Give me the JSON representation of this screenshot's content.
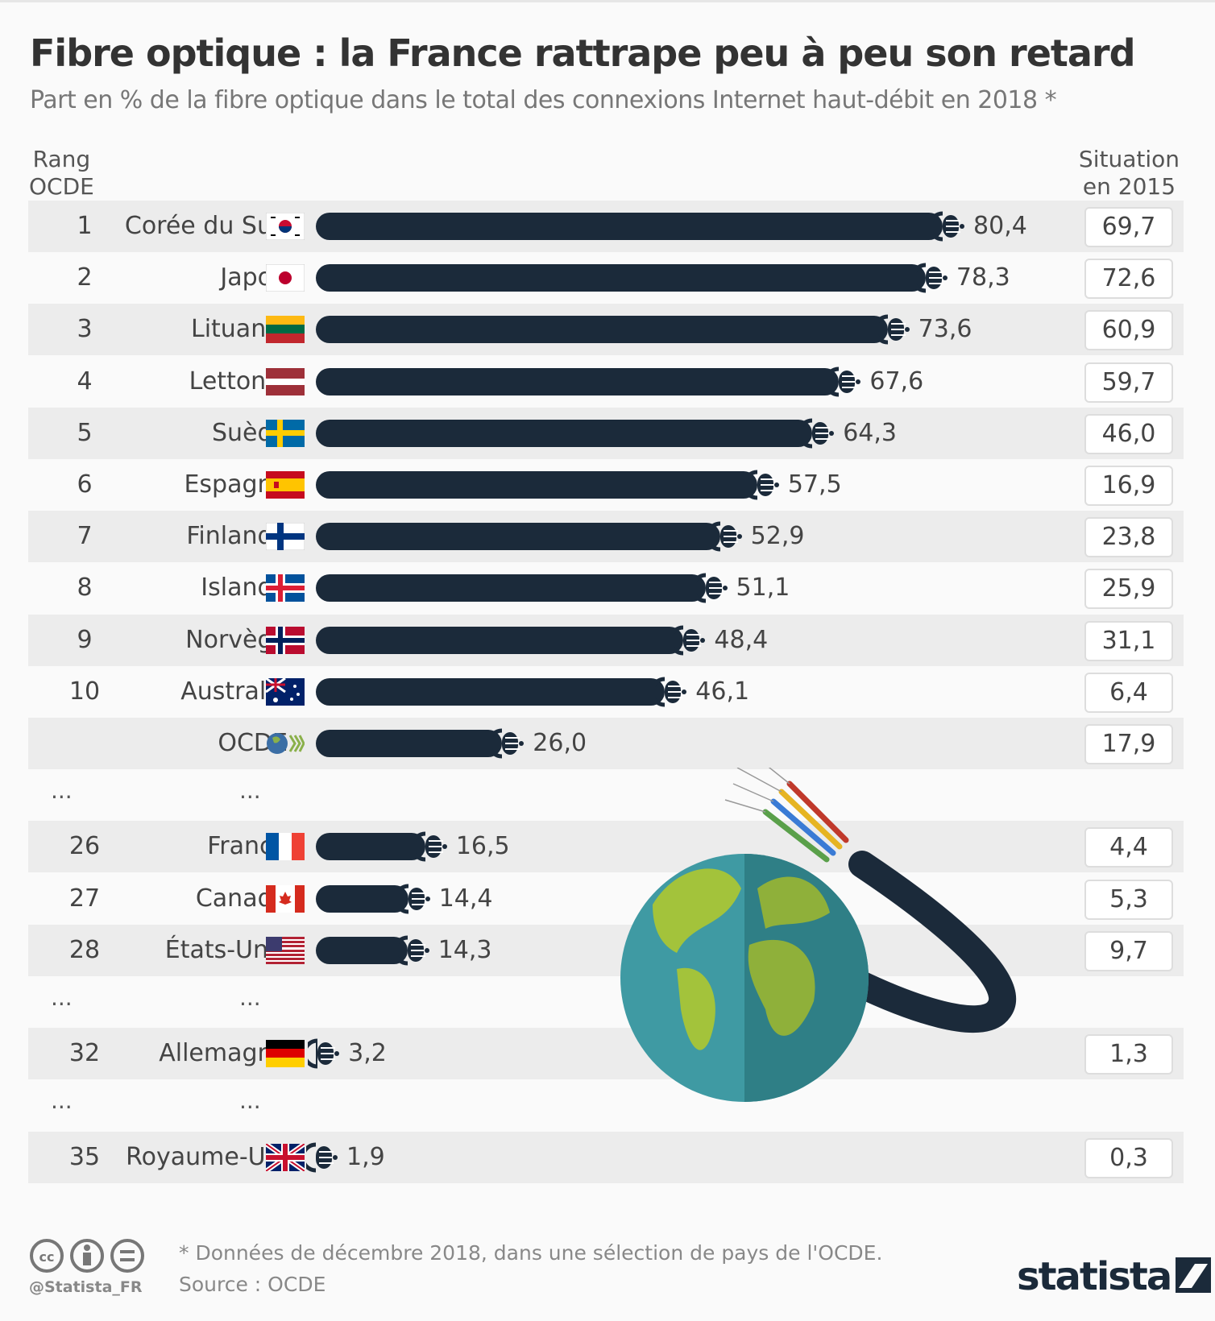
{
  "title": "Fibre optique : la France rattrape peu à peu son retard",
  "subtitle": "Part en % de la fibre optique dans le total des connexions Internet haut-débit en 2018 *",
  "header_left": [
    "Rang",
    "OCDE"
  ],
  "header_right": [
    "Situation",
    "en 2015"
  ],
  "colors": {
    "bar": "#1b2a3a",
    "shade": "#ececec"
  },
  "ellipsis": "...",
  "chart_data": {
    "type": "bar",
    "orientation": "horizontal",
    "title": "Fibre optique : la France rattrape peu à peu son retard",
    "subtitle": "Part en % de la fibre optique dans le total des connexions Internet haut-débit en 2018 *",
    "rows": [
      {
        "rank": "1",
        "country": "Corée du Sud",
        "flag": "kr",
        "value": 80.4,
        "label": "80,4",
        "v2015": "69,7"
      },
      {
        "rank": "2",
        "country": "Japon",
        "flag": "jp",
        "value": 78.3,
        "label": "78,3",
        "v2015": "72,6"
      },
      {
        "rank": "3",
        "country": "Lituanie",
        "flag": "lt",
        "value": 73.6,
        "label": "73,6",
        "v2015": "60,9"
      },
      {
        "rank": "4",
        "country": "Lettonie",
        "flag": "lv",
        "value": 67.6,
        "label": "67,6",
        "v2015": "59,7"
      },
      {
        "rank": "5",
        "country": "Suède",
        "flag": "se",
        "value": 64.3,
        "label": "64,3",
        "v2015": "46,0"
      },
      {
        "rank": "6",
        "country": "Espagne",
        "flag": "es",
        "value": 57.5,
        "label": "57,5",
        "v2015": "16,9"
      },
      {
        "rank": "7",
        "country": "Finlande",
        "flag": "fi",
        "value": 52.9,
        "label": "52,9",
        "v2015": "23,8"
      },
      {
        "rank": "8",
        "country": "Islande",
        "flag": "is",
        "value": 51.1,
        "label": "51,1",
        "v2015": "25,9"
      },
      {
        "rank": "9",
        "country": "Norvège",
        "flag": "no",
        "value": 48.4,
        "label": "48,4",
        "v2015": "31,1"
      },
      {
        "rank": "10",
        "country": "Australie",
        "flag": "au",
        "value": 46.1,
        "label": "46,1",
        "v2015": "6,4"
      },
      {
        "rank": "",
        "country": "OCDE",
        "flag": "oecd",
        "value": 26.0,
        "label": "26,0",
        "v2015": "17,9"
      },
      {
        "gap": true
      },
      {
        "rank": "26",
        "country": "France",
        "flag": "fr",
        "value": 16.5,
        "label": "16,5",
        "v2015": "4,4"
      },
      {
        "rank": "27",
        "country": "Canada",
        "flag": "ca",
        "value": 14.4,
        "label": "14,4",
        "v2015": "5,3"
      },
      {
        "rank": "28",
        "country": "États-Unis",
        "flag": "us",
        "value": 14.3,
        "label": "14,3",
        "v2015": "9,7"
      },
      {
        "gap": true
      },
      {
        "rank": "32",
        "country": "Allemagne",
        "flag": "de",
        "value": 3.2,
        "label": "3,2",
        "v2015": "1,3"
      },
      {
        "gap": true
      },
      {
        "rank": "35",
        "country": "Royaume-Uni",
        "flag": "gb",
        "value": 1.9,
        "label": "1,9",
        "v2015": "0,3"
      }
    ]
  },
  "footer": {
    "note": "* Données de décembre 2018, dans une sélection de pays de l'OCDE.",
    "source": "Source : OCDE",
    "handle": "@Statista_FR",
    "logo": "statista"
  }
}
